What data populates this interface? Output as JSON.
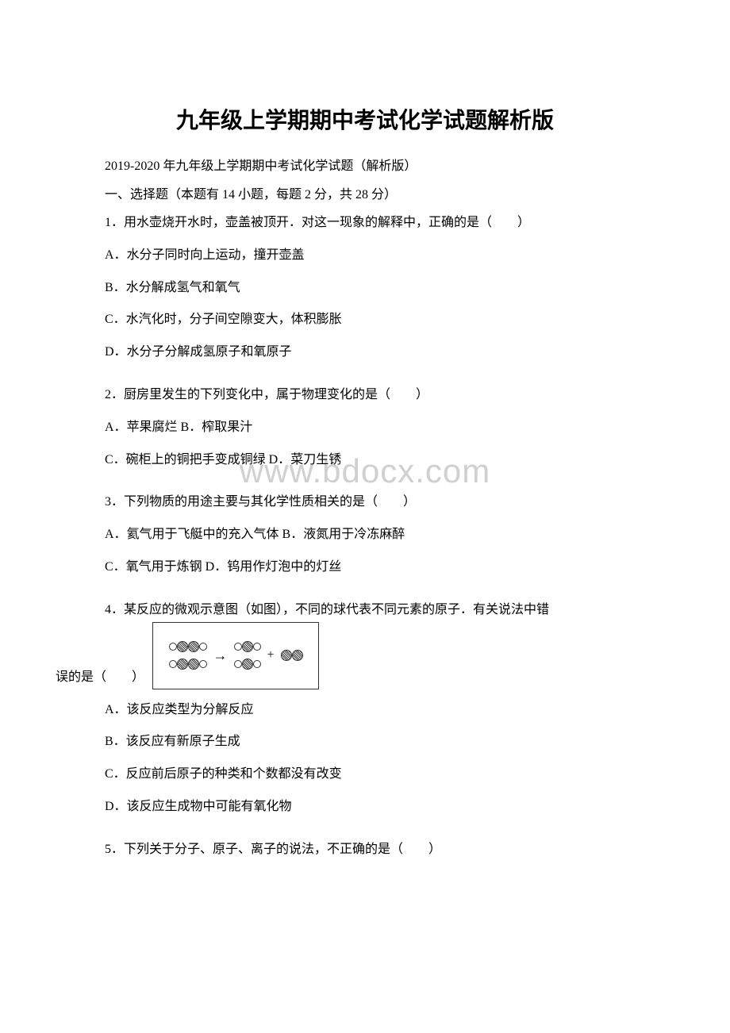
{
  "title": "九年级上学期期中考试化学试题解析版",
  "subtitle": "2019-2020 年九年级上学期期中考试化学试题（解析版）",
  "section_header": "一、选择题（本题有 14 小题，每题 2 分，共 28 分）",
  "watermark": "www.bdocx.com",
  "q1": {
    "text": "1．用水壶烧开水时，壶盖被顶开．对这一现象的解释中，正确的是（　　）",
    "a": "A．水分子同时向上运动，撞开壶盖",
    "b": "B．水分解成氢气和氧气",
    "c": "C．水汽化时，分子间空隙变大，体积膨胀",
    "d": "D．水分子分解成氢原子和氧原子"
  },
  "q2": {
    "text": "2．厨房里发生的下列变化中，属于物理变化的是（　　）",
    "ab": "A．苹果腐烂 B．榨取果汁",
    "cd": "C．碗柜上的铜把手变成铜绿 D．菜刀生锈"
  },
  "q3": {
    "text": "3．下列物质的用途主要与其化学性质相关的是（　　）",
    "ab": "A．氦气用于飞艇中的充入气体 B．液氮用于冷冻麻醉",
    "cd": "C．氧气用于炼钢 D．钨用作灯泡中的灯丝"
  },
  "q4": {
    "text_start": "4．某反应的微观示意图（如图），不同的球代表不同元素的原子．有关说法中错",
    "text_end": "误的是（　　）",
    "a": "A．该反应类型为分解反应",
    "b": "B．该反应有新原子生成",
    "c": "C．反应前后原子的种类和个数都没有改变",
    "d": "D．该反应生成物中可能有氧化物"
  },
  "q5": {
    "text": "5．下列关于分子、原子、离子的说法，不正确的是（　　）"
  }
}
